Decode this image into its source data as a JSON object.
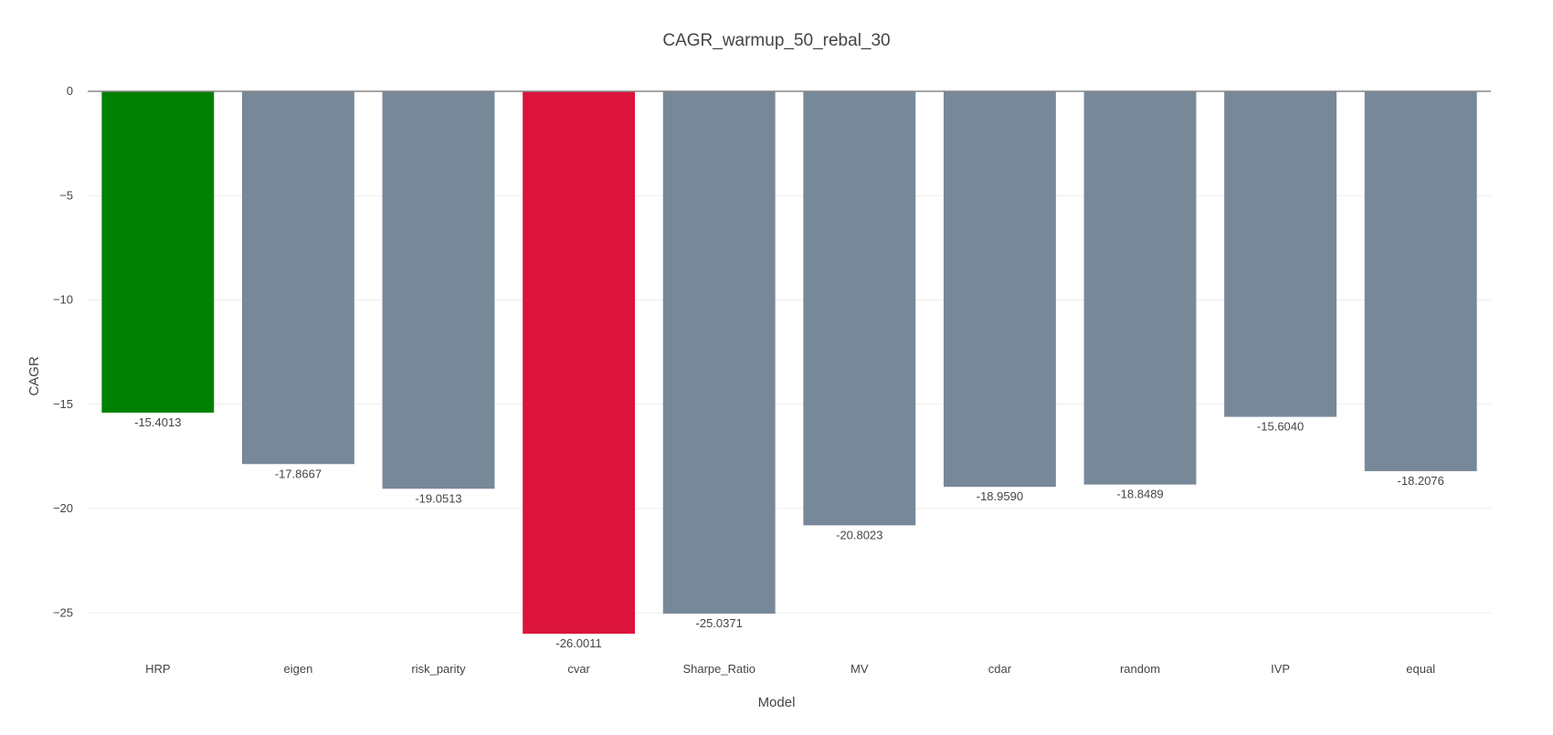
{
  "chart_data": {
    "type": "bar",
    "title": "CAGR_warmup_50_rebal_30",
    "xlabel": "Model",
    "ylabel": "CAGR",
    "categories": [
      "HRP",
      "eigen",
      "risk_parity",
      "cvar",
      "Sharpe_Ratio",
      "MV",
      "cdar",
      "random",
      "IVP",
      "equal"
    ],
    "values": [
      -15.4013,
      -17.8667,
      -19.0513,
      -26.0011,
      -25.0371,
      -20.8023,
      -18.959,
      -18.8489,
      -15.604,
      -18.2076
    ],
    "value_labels": [
      "-15.4013",
      "-17.8667",
      "-19.0513",
      "-26.0011",
      "-25.0371",
      "-20.8023",
      "-18.9590",
      "-18.8489",
      "-15.6040",
      "-18.2076"
    ],
    "colors": [
      "#008000",
      "#778899",
      "#778899",
      "#dc143c",
      "#778899",
      "#778899",
      "#778899",
      "#778899",
      "#778899",
      "#778899"
    ],
    "ylim": [
      -27,
      0
    ],
    "yticks": [
      0,
      -5,
      -10,
      -15,
      -20,
      -25
    ],
    "ytick_labels": [
      "0",
      "−5",
      "−10",
      "−15",
      "−20",
      "−25"
    ],
    "grid": true,
    "legend": "none"
  }
}
